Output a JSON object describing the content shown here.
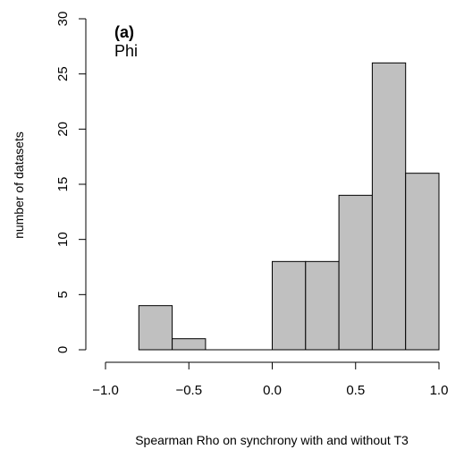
{
  "chart_data": {
    "type": "bar",
    "panel_label": "(a)",
    "panel_subtitle": "Phi",
    "xlabel": "Spearman Rho on synchrony with and without T3",
    "ylabel": "number of datasets",
    "xlim": [
      -1.0,
      1.0
    ],
    "ylim": [
      0,
      30
    ],
    "x_ticks": [
      -1.0,
      -0.5,
      0.0,
      0.5,
      1.0
    ],
    "x_tick_labels": [
      "−1.0",
      "−0.5",
      "0.0",
      "0.5",
      "1.0"
    ],
    "y_ticks": [
      0,
      5,
      10,
      15,
      20,
      25,
      30
    ],
    "y_tick_labels": [
      "0",
      "5",
      "10",
      "15",
      "20",
      "25",
      "30"
    ],
    "bins": [
      {
        "start": -0.8,
        "end": -0.6,
        "count": 4
      },
      {
        "start": -0.6,
        "end": -0.4,
        "count": 1
      },
      {
        "start": -0.4,
        "end": -0.2,
        "count": 0
      },
      {
        "start": -0.2,
        "end": 0.0,
        "count": 0
      },
      {
        "start": 0.0,
        "end": 0.2,
        "count": 8
      },
      {
        "start": 0.2,
        "end": 0.4,
        "count": 8
      },
      {
        "start": 0.4,
        "end": 0.6,
        "count": 14
      },
      {
        "start": 0.6,
        "end": 0.8,
        "count": 26
      },
      {
        "start": 0.8,
        "end": 1.0,
        "count": 16
      }
    ],
    "bar_fill": "#c0c0c0",
    "bar_stroke": "#000000",
    "grid": false,
    "legend": "none"
  }
}
